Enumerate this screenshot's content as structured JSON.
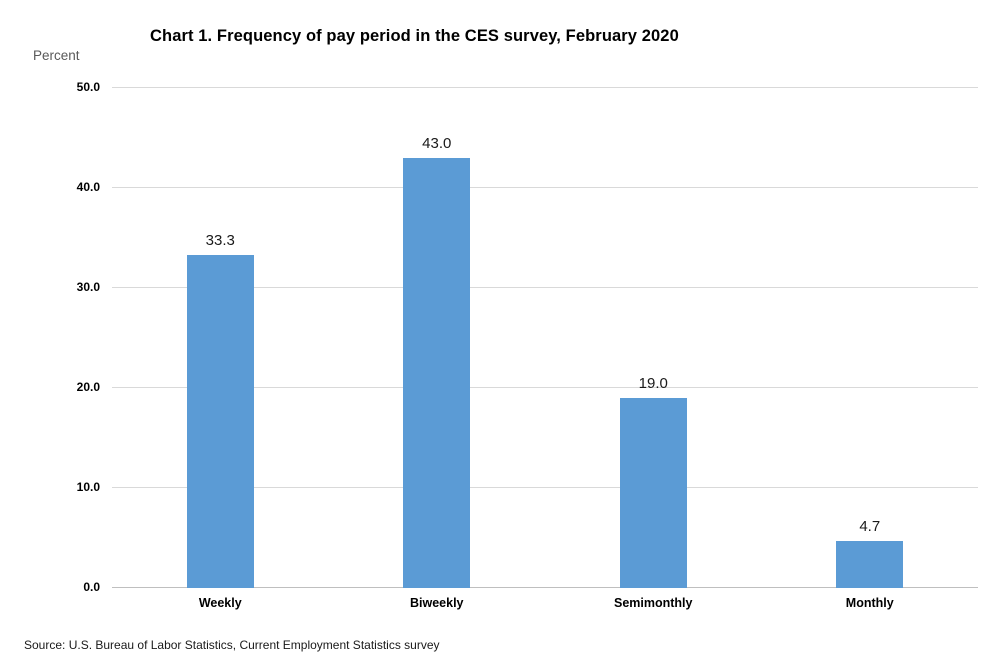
{
  "page": {
    "background": "#FFFFFF"
  },
  "chart_data": {
    "type": "bar",
    "title": "Chart 1. Frequency of pay period in the CES survey, February 2020",
    "ylabel": "Percent",
    "xlabel": "",
    "categories": [
      "Weekly",
      "Biweekly",
      "Semimonthly",
      "Monthly"
    ],
    "values": [
      33.3,
      43.0,
      19.0,
      4.7
    ],
    "value_labels": [
      "33.3",
      "43.0",
      "19.0",
      "4.7"
    ],
    "y_ticks": [
      "50.0",
      "40.0",
      "30.0",
      "20.0",
      "10.0",
      "0.0"
    ],
    "y_tick_values": [
      50,
      40,
      30,
      20,
      10,
      0
    ],
    "ylim": [
      0,
      50
    ],
    "grid": true,
    "legend_position": "none",
    "bar_color": "#5B9BD5",
    "gridline_color": "#D9D9D9",
    "axis_line_color": "#BFBFBF",
    "source": "Source: U.S. Bureau of Labor Statistics, Current Employment Statistics survey"
  }
}
